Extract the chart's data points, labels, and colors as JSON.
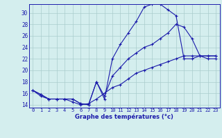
{
  "xlabel": "Graphe des températures (°c)",
  "background_color": "#d4eeee",
  "grid_color": "#aacccc",
  "line_color": "#1a1aaa",
  "xlim": [
    -0.5,
    23.5
  ],
  "ylim": [
    13.5,
    31.5
  ],
  "yticks": [
    14,
    16,
    18,
    20,
    22,
    24,
    26,
    28,
    30
  ],
  "xticks": [
    0,
    1,
    2,
    3,
    4,
    5,
    6,
    7,
    8,
    9,
    10,
    11,
    12,
    13,
    14,
    15,
    16,
    17,
    18,
    19,
    20,
    21,
    22,
    23
  ],
  "series1_x": [
    0,
    1,
    2,
    3,
    4,
    5,
    6,
    7,
    8,
    9,
    10,
    11,
    12,
    13,
    14,
    15,
    16,
    17,
    18,
    19,
    20,
    21,
    22,
    23
  ],
  "series1_y": [
    16.5,
    15.8,
    15.0,
    15.0,
    15.0,
    15.0,
    14.2,
    14.0,
    18.0,
    15.0,
    22.0,
    24.5,
    26.5,
    28.5,
    31.0,
    31.5,
    31.5,
    30.5,
    29.5,
    22.0,
    22.0,
    22.5,
    22.5,
    22.5
  ],
  "series2_x": [
    0,
    1,
    2,
    3,
    4,
    5,
    6,
    7,
    8,
    9,
    10,
    11,
    12,
    13,
    14,
    15,
    16,
    17,
    18,
    19,
    20,
    21,
    22,
    23
  ],
  "series2_y": [
    16.5,
    15.8,
    15.0,
    15.0,
    15.0,
    15.0,
    14.2,
    14.0,
    18.0,
    15.5,
    19.0,
    20.5,
    22.0,
    23.0,
    24.0,
    24.5,
    25.5,
    26.5,
    28.0,
    27.5,
    25.5,
    22.5,
    22.0,
    22.0
  ],
  "series3_x": [
    0,
    1,
    2,
    3,
    4,
    5,
    6,
    7,
    8,
    9,
    10,
    11,
    12,
    13,
    14,
    15,
    16,
    17,
    18,
    19,
    20,
    21,
    22,
    23
  ],
  "series3_y": [
    16.5,
    15.5,
    15.0,
    15.0,
    15.0,
    14.5,
    14.0,
    14.2,
    15.0,
    16.0,
    17.0,
    17.5,
    18.5,
    19.5,
    20.0,
    20.5,
    21.0,
    21.5,
    22.0,
    22.5,
    22.5,
    22.5,
    22.5,
    22.5
  ]
}
